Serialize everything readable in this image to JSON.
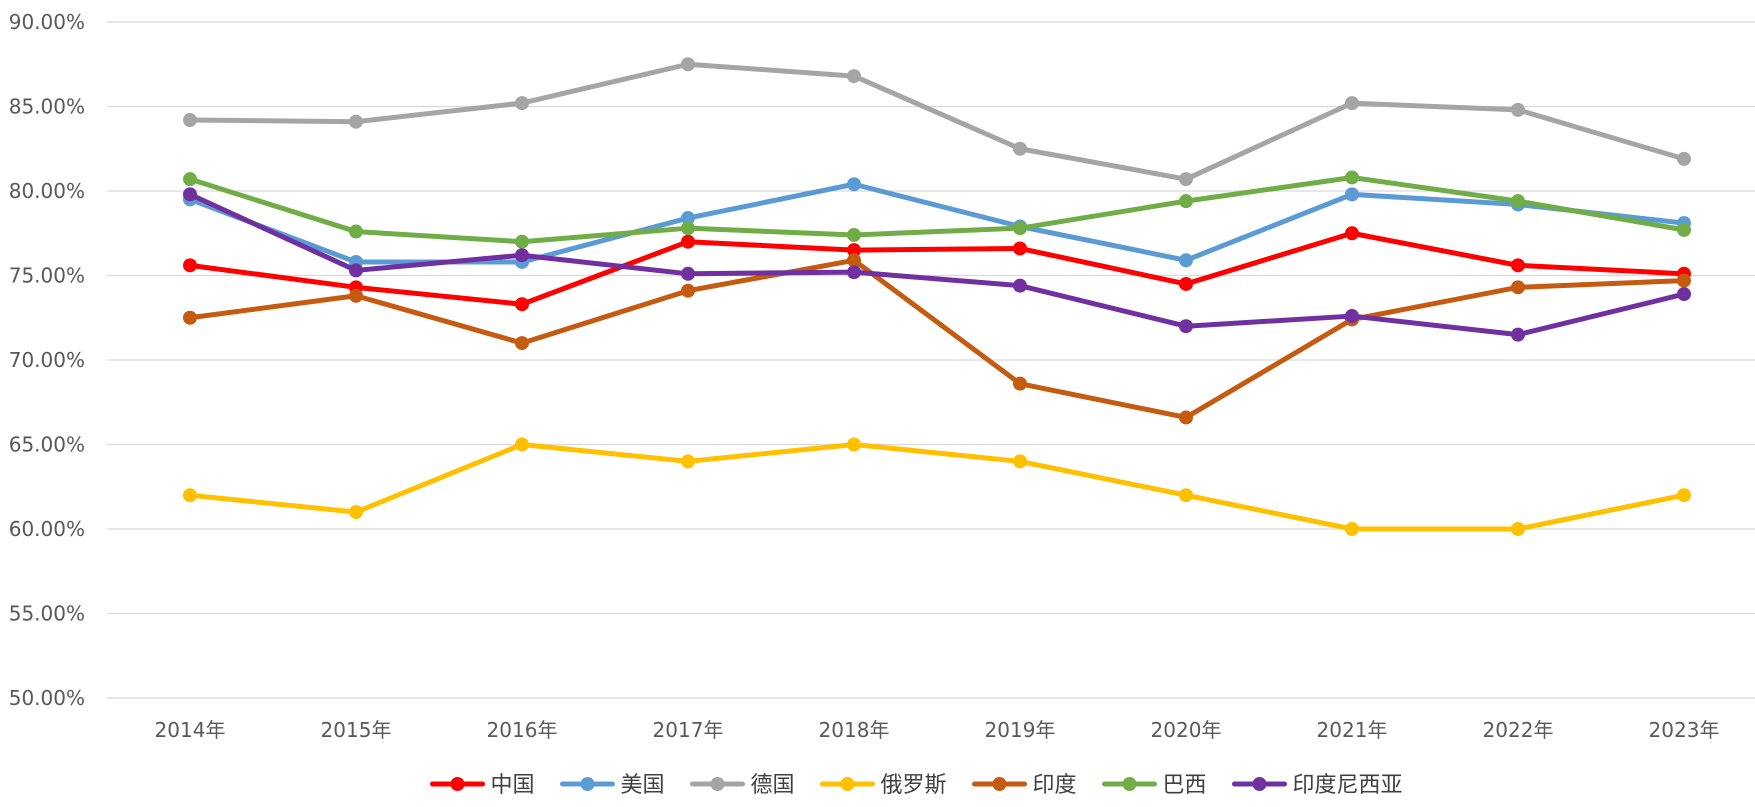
{
  "chart_data": {
    "type": "line",
    "title": "",
    "xlabel": "",
    "ylabel": "",
    "categories": [
      "2014年",
      "2015年",
      "2016年",
      "2017年",
      "2018年",
      "2019年",
      "2020年",
      "2021年",
      "2022年",
      "2023年"
    ],
    "ylim": [
      0.5,
      0.9
    ],
    "yticks": [
      0.5,
      0.55,
      0.6,
      0.65,
      0.7,
      0.75,
      0.8,
      0.85,
      0.9
    ],
    "ytick_labels": [
      "50.00%",
      "55.00%",
      "60.00%",
      "65.00%",
      "70.00%",
      "75.00%",
      "80.00%",
      "85.00%",
      "90.00%"
    ],
    "grid": true,
    "legend_position": "bottom",
    "series": [
      {
        "name": "中国",
        "color": "#ff0000",
        "values": [
          0.756,
          0.743,
          0.733,
          0.77,
          0.765,
          0.766,
          0.745,
          0.775,
          0.756,
          0.751
        ]
      },
      {
        "name": "美国",
        "color": "#5b9bd5",
        "values": [
          0.795,
          0.758,
          0.758,
          0.784,
          0.804,
          0.779,
          0.759,
          0.798,
          0.792,
          0.781
        ]
      },
      {
        "name": "德国",
        "color": "#a5a5a5",
        "values": [
          0.842,
          0.841,
          0.852,
          0.875,
          0.868,
          0.825,
          0.807,
          0.852,
          0.848,
          0.819
        ]
      },
      {
        "name": "俄罗斯",
        "color": "#ffc000",
        "values": [
          0.62,
          0.61,
          0.65,
          0.64,
          0.65,
          0.64,
          0.62,
          0.6,
          0.6,
          0.62
        ]
      },
      {
        "name": "印度",
        "color": "#c55a11",
        "values": [
          0.725,
          0.738,
          0.71,
          0.741,
          0.759,
          0.686,
          0.666,
          0.724,
          0.743,
          0.747
        ]
      },
      {
        "name": "巴西",
        "color": "#70ad47",
        "values": [
          0.807,
          0.776,
          0.77,
          0.778,
          0.774,
          0.778,
          0.794,
          0.808,
          0.794,
          0.777
        ]
      },
      {
        "name": "印度尼西亚",
        "color": "#7030a0",
        "values": [
          0.798,
          0.753,
          0.762,
          0.751,
          0.752,
          0.744,
          0.72,
          0.726,
          0.715,
          0.739
        ]
      }
    ]
  }
}
